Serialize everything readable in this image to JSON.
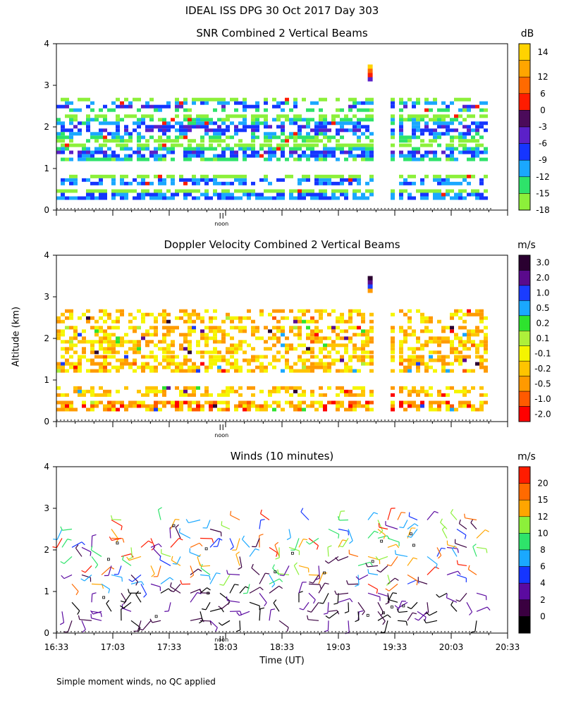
{
  "page_title": "IDEAL ISS DPG  30 Oct 2017 Day 303",
  "ylabel": "Altitude (km)",
  "xlabel": "Time (UT)",
  "noon_label": "noon",
  "footnote": "Simple moment winds, no QC applied",
  "colors": {
    "axis": "#000000",
    "background": "#ffffff"
  },
  "chart_data": [
    {
      "type": "heatmap",
      "title": "SNR Combined 2 Vertical Beams",
      "unit": "dB",
      "ylim": [
        0,
        4
      ],
      "yticks": [
        0,
        1,
        2,
        3,
        4
      ],
      "colorbar": {
        "labels": [
          "14",
          "12",
          "6",
          "0",
          "-3",
          "-6",
          "-9",
          "-12",
          "-15",
          "-18"
        ],
        "colors": [
          "#ffd300",
          "#ffa500",
          "#ff6a00",
          "#ff1c00",
          "#4b0b5a",
          "#5b20c8",
          "#1535ff",
          "#1aa8ff",
          "#2ee36a",
          "#8cf03a"
        ]
      },
      "layers": [
        {
          "alt": [
            0.25,
            0.5
          ],
          "intensity": 0.75
        },
        {
          "alt": [
            0.6,
            0.85
          ],
          "intensity": 0.55
        },
        {
          "alt": [
            1.2,
            1.6
          ],
          "intensity": 0.7
        },
        {
          "alt": [
            1.7,
            2.3
          ],
          "intensity": 0.6
        },
        {
          "alt": [
            2.4,
            2.7
          ],
          "intensity": 0.45
        }
      ]
    },
    {
      "type": "heatmap",
      "title": "Doppler Velocity Combined 2 Vertical Beams",
      "unit": "m/s",
      "ylim": [
        0,
        4
      ],
      "yticks": [
        0,
        1,
        2,
        3,
        4
      ],
      "colorbar": {
        "labels": [
          "3.0",
          "2.0",
          "1.0",
          "0.5",
          "0.2",
          "0.1",
          "-0.1",
          "-0.2",
          "-0.5",
          "-1.0",
          "-2.0"
        ],
        "colors": [
          "#2a0030",
          "#5a0a8c",
          "#1a3cff",
          "#1aa8ff",
          "#2ee32e",
          "#aef03a",
          "#f5f500",
          "#ffc400",
          "#ff9a00",
          "#ff5a00",
          "#ff0000"
        ]
      }
    },
    {
      "type": "barbs",
      "title": "Winds (10 minutes)",
      "unit": "m/s",
      "ylim": [
        0,
        4
      ],
      "yticks": [
        0,
        1,
        2,
        3,
        4
      ],
      "xticks": [
        "16:33",
        "17:03",
        "17:33",
        "18:03",
        "18:33",
        "19:03",
        "19:33",
        "20:03",
        "20:33"
      ],
      "colorbar": {
        "labels": [
          "20",
          "15",
          "12",
          "10",
          "8",
          "6",
          "4",
          "2",
          "0"
        ],
        "colors": [
          "#ff1c00",
          "#ff6a00",
          "#ffa500",
          "#8cf03a",
          "#2ee36a",
          "#1aa8ff",
          "#1535ff",
          "#5b0aa0",
          "#3a0040",
          "#000000"
        ]
      }
    }
  ]
}
